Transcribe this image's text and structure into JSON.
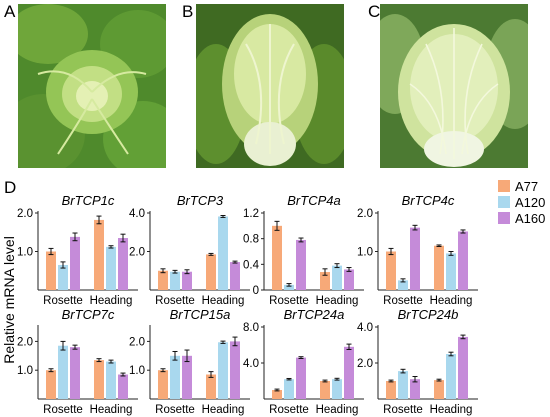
{
  "panels": {
    "a_label": "A",
    "b_label": "B",
    "c_label": "C",
    "d_label": "D"
  },
  "ylabel": "Relative mRNA level",
  "legend": [
    {
      "name": "A77",
      "color": "#f7a978"
    },
    {
      "name": "A120",
      "color": "#a9d8ee"
    },
    {
      "name": "A160",
      "color": "#c58bd9"
    }
  ],
  "chart_data": [
    {
      "type": "bar",
      "title": "BrTCP1c",
      "categories": [
        "Rosette",
        "Heading"
      ],
      "ylim": [
        0,
        2.0
      ],
      "yticks": [
        "1.0",
        "2.0"
      ],
      "tickvals": [
        1.0,
        2.0
      ],
      "series": [
        {
          "name": "A77",
          "values": [
            1.0,
            1.82
          ],
          "err": [
            0.08,
            0.1
          ]
        },
        {
          "name": "A120",
          "values": [
            0.65,
            1.12
          ],
          "err": [
            0.08,
            0.03
          ]
        },
        {
          "name": "A160",
          "values": [
            1.38,
            1.35
          ],
          "err": [
            0.1,
            0.1
          ]
        }
      ]
    },
    {
      "type": "bar",
      "title": "BrTCP3",
      "categories": [
        "Rosette",
        "Heading"
      ],
      "ylim": [
        0,
        4.0
      ],
      "yticks": [
        "2.0",
        "4.0"
      ],
      "tickvals": [
        2.0,
        4.0
      ],
      "series": [
        {
          "name": "A77",
          "values": [
            1.0,
            1.85
          ],
          "err": [
            0.1,
            0.05
          ]
        },
        {
          "name": "A120",
          "values": [
            0.95,
            3.82
          ],
          "err": [
            0.07,
            0.05
          ]
        },
        {
          "name": "A160",
          "values": [
            0.95,
            1.45
          ],
          "err": [
            0.1,
            0.05
          ]
        }
      ]
    },
    {
      "type": "bar",
      "title": "BrTCP4a",
      "categories": [
        "Rosette",
        "Heading"
      ],
      "ylim": [
        0,
        1.2
      ],
      "yticks": [
        "0",
        "0.4",
        "0.8",
        "1.2"
      ],
      "tickvals": [
        0,
        0.4,
        0.8,
        1.2
      ],
      "series": [
        {
          "name": "A77",
          "values": [
            1.0,
            0.28
          ],
          "err": [
            0.07,
            0.05
          ]
        },
        {
          "name": "A120",
          "values": [
            0.08,
            0.38
          ],
          "err": [
            0.02,
            0.03
          ]
        },
        {
          "name": "A160",
          "values": [
            0.78,
            0.32
          ],
          "err": [
            0.03,
            0.03
          ]
        }
      ]
    },
    {
      "type": "bar",
      "title": "BrTCP4c",
      "categories": [
        "Rosette",
        "Heading"
      ],
      "ylim": [
        0,
        2.0
      ],
      "yticks": [
        "1.0",
        "2.0"
      ],
      "tickvals": [
        1.0,
        2.0
      ],
      "series": [
        {
          "name": "A77",
          "values": [
            1.0,
            1.15
          ],
          "err": [
            0.08,
            0.02
          ]
        },
        {
          "name": "A120",
          "values": [
            0.25,
            0.95
          ],
          "err": [
            0.04,
            0.05
          ]
        },
        {
          "name": "A160",
          "values": [
            1.62,
            1.52
          ],
          "err": [
            0.06,
            0.04
          ]
        }
      ]
    },
    {
      "type": "bar",
      "title": "BrTCP7c",
      "categories": [
        "Rosette",
        "Heading"
      ],
      "ylim": [
        0,
        2.5
      ],
      "yticks": [
        "1.0",
        "2.0"
      ],
      "tickvals": [
        1.0,
        2.0
      ],
      "series": [
        {
          "name": "A77",
          "values": [
            1.0,
            1.35
          ],
          "err": [
            0.05,
            0.05
          ]
        },
        {
          "name": "A120",
          "values": [
            1.85,
            1.3
          ],
          "err": [
            0.15,
            0.05
          ]
        },
        {
          "name": "A160",
          "values": [
            1.8,
            0.85
          ],
          "err": [
            0.07,
            0.05
          ]
        }
      ]
    },
    {
      "type": "bar",
      "title": "BrTCP15a",
      "categories": [
        "Rosette",
        "Heading"
      ],
      "ylim": [
        0,
        2.5
      ],
      "yticks": [
        "1.0",
        "2.0"
      ],
      "tickvals": [
        1.0,
        2.0
      ],
      "series": [
        {
          "name": "A77",
          "values": [
            1.0,
            0.85
          ],
          "err": [
            0.05,
            0.1
          ]
        },
        {
          "name": "A120",
          "values": [
            1.5,
            1.97
          ],
          "err": [
            0.15,
            0.04
          ]
        },
        {
          "name": "A160",
          "values": [
            1.5,
            2.0
          ],
          "err": [
            0.2,
            0.15
          ]
        }
      ]
    },
    {
      "type": "bar",
      "title": "BrTCP24a",
      "categories": [
        "Rosette",
        "Heading"
      ],
      "ylim": [
        0,
        8.0
      ],
      "yticks": [
        "4.0",
        "8.0"
      ],
      "tickvals": [
        4.0,
        8.0
      ],
      "series": [
        {
          "name": "A77",
          "values": [
            1.0,
            2.0
          ],
          "err": [
            0.1,
            0.1
          ]
        },
        {
          "name": "A120",
          "values": [
            2.2,
            2.2
          ],
          "err": [
            0.08,
            0.1
          ]
        },
        {
          "name": "A160",
          "values": [
            4.6,
            5.8
          ],
          "err": [
            0.1,
            0.3
          ]
        }
      ]
    },
    {
      "type": "bar",
      "title": "BrTCP24b",
      "categories": [
        "Rosette",
        "Heading"
      ],
      "ylim": [
        0,
        4.0
      ],
      "yticks": [
        "2.0",
        "4.0"
      ],
      "tickvals": [
        2.0,
        4.0
      ],
      "series": [
        {
          "name": "A77",
          "values": [
            1.0,
            1.05
          ],
          "err": [
            0.05,
            0.05
          ]
        },
        {
          "name": "A120",
          "values": [
            1.55,
            2.5
          ],
          "err": [
            0.1,
            0.1
          ]
        },
        {
          "name": "A160",
          "values": [
            1.1,
            3.45
          ],
          "err": [
            0.15,
            0.1
          ]
        }
      ]
    }
  ]
}
